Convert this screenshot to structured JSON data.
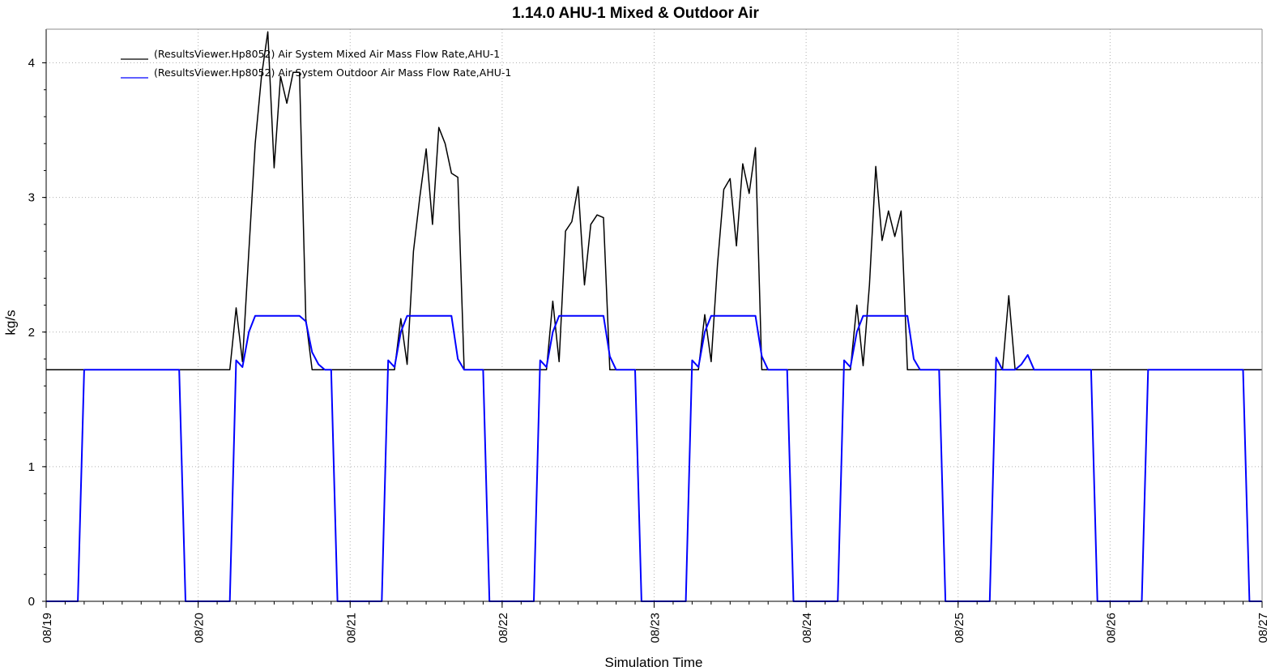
{
  "chart_data": {
    "type": "line",
    "title": "1.14.0 AHU-1 Mixed & Outdoor Air",
    "xlabel": "Simulation Time",
    "ylabel": "kg/s",
    "ylim": [
      0,
      4.25
    ],
    "yticks": [
      0,
      1,
      2,
      3,
      4
    ],
    "xlim": [
      "08/19 00:00",
      "08/27 00:00"
    ],
    "xticks": [
      "08/19",
      "08/20",
      "08/21",
      "08/22",
      "08/23",
      "08/24",
      "08/25",
      "08/26",
      "08/27"
    ],
    "grid": true,
    "legend_position": "top-left",
    "series": [
      {
        "name": "(ResultsViewer.Hp8052) Air System Mixed Air Mass Flow Rate,AHU-1",
        "color": "#000000",
        "x": [
          "08/19 00:00",
          "08/20 05:00",
          "08/20 06:00",
          "08/20 07:00",
          "08/20 08:00",
          "08/20 09:00",
          "08/20 10:00",
          "08/20 11:00",
          "08/20 12:00",
          "08/20 13:00",
          "08/20 14:00",
          "08/20 15:00",
          "08/20 16:00",
          "08/20 17:00",
          "08/20 18:00",
          "08/21 07:00",
          "08/21 08:00",
          "08/21 09:00",
          "08/21 10:00",
          "08/21 11:00",
          "08/21 12:00",
          "08/21 13:00",
          "08/21 14:00",
          "08/21 15:00",
          "08/21 16:00",
          "08/21 17:00",
          "08/21 18:00",
          "08/22 07:00",
          "08/22 08:00",
          "08/22 09:00",
          "08/22 10:00",
          "08/22 11:00",
          "08/22 12:00",
          "08/22 13:00",
          "08/22 14:00",
          "08/22 15:00",
          "08/22 16:00",
          "08/22 17:00",
          "08/22 18:00",
          "08/23 07:00",
          "08/23 08:00",
          "08/23 09:00",
          "08/23 10:00",
          "08/23 11:00",
          "08/23 12:00",
          "08/23 13:00",
          "08/23 14:00",
          "08/23 15:00",
          "08/23 16:00",
          "08/23 17:00",
          "08/23 18:00",
          "08/24 07:00",
          "08/24 08:00",
          "08/24 09:00",
          "08/24 10:00",
          "08/24 11:00",
          "08/24 12:00",
          "08/24 13:00",
          "08/24 14:00",
          "08/24 15:00",
          "08/24 16:00",
          "08/24 17:00",
          "08/24 18:00",
          "08/25 07:00",
          "08/25 08:00",
          "08/25 09:00",
          "08/27 00:00"
        ],
        "y": [
          1.72,
          1.72,
          2.18,
          1.78,
          2.6,
          3.4,
          3.9,
          4.23,
          3.22,
          3.9,
          3.7,
          3.93,
          3.93,
          2.1,
          1.72,
          1.72,
          2.1,
          1.76,
          2.6,
          3.0,
          3.36,
          2.8,
          3.52,
          3.4,
          3.18,
          3.15,
          1.72,
          1.72,
          2.23,
          1.78,
          2.75,
          2.82,
          3.08,
          2.35,
          2.8,
          2.87,
          2.85,
          1.72,
          1.72,
          1.72,
          2.13,
          1.78,
          2.5,
          3.06,
          3.14,
          2.64,
          3.25,
          3.03,
          3.37,
          1.72,
          1.72,
          1.72,
          2.2,
          1.75,
          2.35,
          3.23,
          2.68,
          2.9,
          2.71,
          2.9,
          1.72,
          1.72,
          1.72,
          1.72,
          2.27,
          1.72,
          1.72
        ]
      },
      {
        "name": "(ResultsViewer.Hp8052) Air System Outdoor Air Mass Flow Rate,AHU-1",
        "color": "#0000ff",
        "x": [
          "08/19 00:00",
          "08/19 05:00",
          "08/19 06:00",
          "08/19 21:00",
          "08/19 22:00",
          "08/20 05:00",
          "08/20 06:00",
          "08/20 07:00",
          "08/20 08:00",
          "08/20 09:00",
          "08/20 16:00",
          "08/20 17:00",
          "08/20 18:00",
          "08/20 19:00",
          "08/20 20:00",
          "08/20 21:00",
          "08/20 22:00",
          "08/21 05:00",
          "08/21 06:00",
          "08/21 07:00",
          "08/21 08:00",
          "08/21 09:00",
          "08/21 16:00",
          "08/21 17:00",
          "08/21 18:00",
          "08/21 21:00",
          "08/21 22:00",
          "08/22 05:00",
          "08/22 06:00",
          "08/22 07:00",
          "08/22 08:00",
          "08/22 09:00",
          "08/22 16:00",
          "08/22 17:00",
          "08/22 18:00",
          "08/22 21:00",
          "08/22 22:00",
          "08/23 05:00",
          "08/23 06:00",
          "08/23 07:00",
          "08/23 08:00",
          "08/23 09:00",
          "08/23 16:00",
          "08/23 17:00",
          "08/23 18:00",
          "08/23 21:00",
          "08/23 22:00",
          "08/24 05:00",
          "08/24 06:00",
          "08/24 07:00",
          "08/24 08:00",
          "08/24 09:00",
          "08/24 16:00",
          "08/24 17:00",
          "08/24 18:00",
          "08/24 21:00",
          "08/24 22:00",
          "08/25 05:00",
          "08/25 06:00",
          "08/25 07:00",
          "08/25 09:00",
          "08/25 10:00",
          "08/25 11:00",
          "08/25 12:00",
          "08/25 21:00",
          "08/25 22:00",
          "08/26 05:00",
          "08/26 06:00",
          "08/26 21:00",
          "08/26 22:00",
          "08/27 00:00"
        ],
        "y": [
          0,
          0,
          1.72,
          1.72,
          0,
          0,
          1.79,
          1.74,
          2.0,
          2.12,
          2.12,
          2.08,
          1.85,
          1.76,
          1.72,
          1.72,
          0,
          0,
          1.79,
          1.74,
          2.0,
          2.12,
          2.12,
          1.8,
          1.72,
          1.72,
          0,
          0,
          1.79,
          1.74,
          2.0,
          2.12,
          2.12,
          1.82,
          1.72,
          1.72,
          0,
          0,
          1.79,
          1.74,
          2.0,
          2.12,
          2.12,
          1.82,
          1.72,
          1.72,
          0,
          0,
          1.79,
          1.74,
          2.0,
          2.12,
          2.12,
          1.8,
          1.72,
          1.72,
          0,
          0,
          1.81,
          1.72,
          1.72,
          1.76,
          1.83,
          1.72,
          1.72,
          0,
          0,
          1.72,
          1.72,
          0,
          0
        ]
      }
    ]
  }
}
